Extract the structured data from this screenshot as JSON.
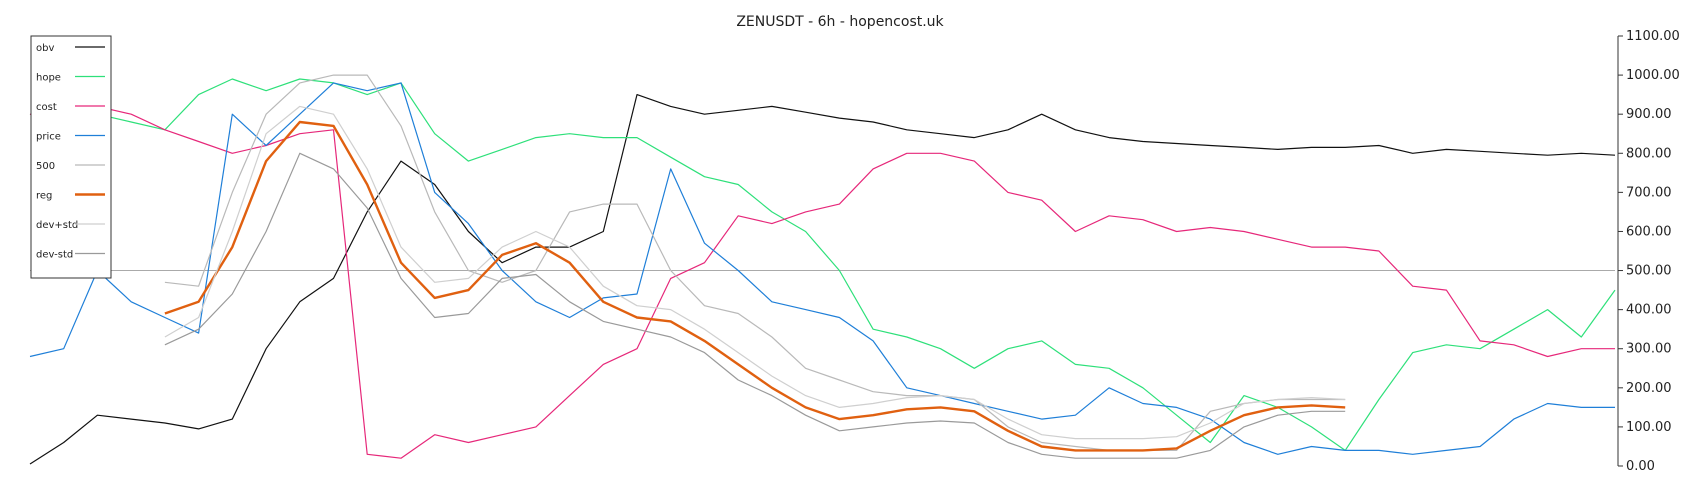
{
  "chart_data": {
    "type": "line",
    "title": "ZENUSDT - 6h - hopencost.uk",
    "ylim": [
      0,
      1100
    ],
    "y_ticks": [
      "0.00",
      "100.00",
      "200.00",
      "300.00",
      "400.00",
      "500.00",
      "600.00",
      "700.00",
      "800.00",
      "900.00",
      "1000.00",
      "1100.00"
    ],
    "y_axis_side": "right",
    "reference_line": 500,
    "legend_placement": "top-left",
    "x_count": 48,
    "series": [
      {
        "name": "obv",
        "color": "#111111",
        "width": 1.2,
        "start": 0,
        "values": [
          5,
          60,
          130,
          120,
          110,
          95,
          120,
          300,
          420,
          480,
          650,
          780,
          720,
          600,
          520,
          560,
          560,
          600,
          950,
          920,
          900,
          910,
          920,
          905,
          890,
          880,
          860,
          850,
          840,
          860,
          900,
          860,
          840,
          830,
          825,
          820,
          815,
          810,
          815,
          815,
          820,
          800,
          810,
          805,
          800,
          795,
          800,
          795
        ]
      },
      {
        "name": "hope",
        "color": "#2ee07a",
        "width": 1.2,
        "start": 0,
        "values": [
          900,
          880,
          900,
          880,
          860,
          950,
          990,
          960,
          990,
          980,
          950,
          980,
          850,
          780,
          810,
          840,
          850,
          840,
          840,
          790,
          740,
          720,
          650,
          600,
          500,
          350,
          330,
          300,
          250,
          300,
          320,
          260,
          250,
          200,
          130,
          60,
          180,
          150,
          100,
          40,
          170,
          290,
          310,
          300,
          350,
          400,
          330,
          450
        ]
      },
      {
        "name": "cost",
        "color": "#e6287a",
        "width": 1.2,
        "start": 0,
        "values": [
          900,
          880,
          920,
          900,
          860,
          830,
          800,
          820,
          850,
          860,
          30,
          20,
          80,
          60,
          80,
          100,
          180,
          260,
          300,
          480,
          520,
          640,
          620,
          650,
          670,
          760,
          800,
          800,
          780,
          700,
          680,
          600,
          640,
          630,
          600,
          610,
          600,
          580,
          560,
          560,
          550,
          460,
          450,
          320,
          310,
          280,
          300,
          300
        ]
      },
      {
        "name": "price",
        "color": "#1f7fd8",
        "width": 1.2,
        "start": 0,
        "values": [
          280,
          300,
          500,
          420,
          380,
          340,
          900,
          820,
          900,
          980,
          960,
          980,
          700,
          620,
          500,
          420,
          380,
          430,
          440,
          760,
          570,
          500,
          420,
          400,
          380,
          320,
          200,
          180,
          160,
          140,
          120,
          130,
          200,
          160,
          150,
          120,
          60,
          30,
          50,
          40,
          40,
          30,
          40,
          50,
          120,
          160,
          150,
          150
        ]
      },
      {
        "name": "500",
        "color": "#b9b9b9",
        "width": 1.2,
        "start": 4,
        "values": [
          470,
          460,
          700,
          900,
          980,
          1000,
          1000,
          870,
          650,
          500,
          470,
          500,
          650,
          670,
          670,
          500,
          410,
          390,
          330,
          250,
          220,
          190,
          180,
          180,
          170,
          100,
          60,
          50,
          40,
          40,
          40,
          140,
          160,
          170,
          170,
          170
        ]
      },
      {
        "name": "reg",
        "color": "#e06010",
        "width": 2.4,
        "start": 4,
        "values": [
          390,
          420,
          560,
          780,
          880,
          870,
          720,
          520,
          430,
          450,
          540,
          570,
          520,
          420,
          380,
          370,
          320,
          260,
          200,
          150,
          120,
          130,
          145,
          150,
          140,
          90,
          50,
          40,
          40,
          40,
          45,
          90,
          130,
          150,
          155,
          150
        ]
      },
      {
        "name": "dev+std",
        "color": "#cfcfcf",
        "width": 1.2,
        "start": 4,
        "values": [
          330,
          380,
          600,
          850,
          920,
          900,
          760,
          560,
          470,
          480,
          560,
          600,
          560,
          460,
          410,
          400,
          350,
          290,
          230,
          180,
          150,
          160,
          175,
          180,
          170,
          120,
          80,
          70,
          70,
          70,
          75,
          110,
          160,
          170,
          175,
          170
        ]
      },
      {
        "name": "dev-std",
        "color": "#9a9a9a",
        "width": 1.2,
        "start": 4,
        "values": [
          310,
          350,
          440,
          600,
          800,
          760,
          660,
          480,
          380,
          390,
          480,
          490,
          420,
          370,
          350,
          330,
          290,
          220,
          180,
          130,
          90,
          100,
          110,
          115,
          110,
          60,
          30,
          20,
          20,
          20,
          20,
          40,
          100,
          130,
          140,
          140
        ]
      }
    ]
  }
}
